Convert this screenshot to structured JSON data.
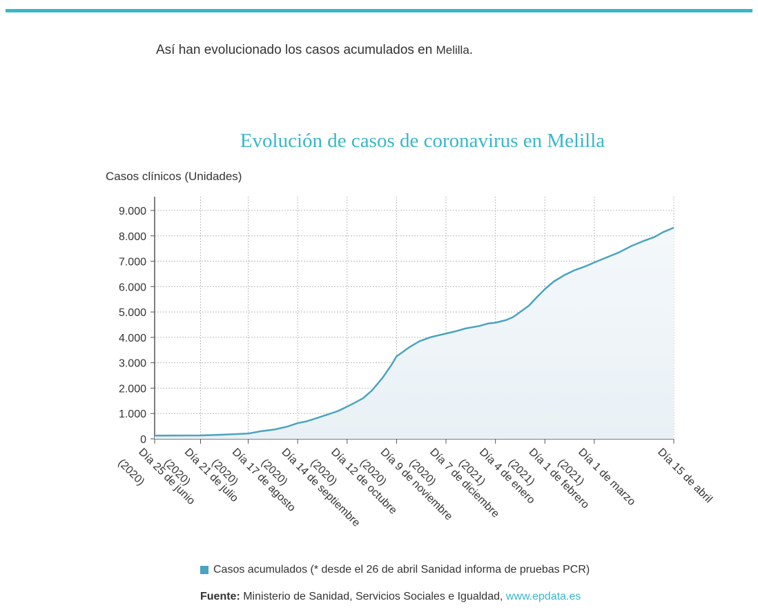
{
  "intro": {
    "text": "Así han evolucionado los casos acumulados en ",
    "place": "Melilla",
    "end": "."
  },
  "colors": {
    "accent": "#3ab6c8",
    "line": "#4aa3c0",
    "area": "#e9f1f6",
    "grid": "#bbbbbb"
  },
  "legend": {
    "label": "Casos acumulados (* desde el 26 de abril Sanidad informa de pruebas PCR)"
  },
  "source": {
    "label": "Fuente:",
    "text": " Ministerio de Sanidad, Servicios Sociales e Igualdad, ",
    "link": "www.epdata.es"
  },
  "chart_data": {
    "type": "area",
    "title": "Evolución de casos de coronavirus en Melilla",
    "ylabel": "Casos clínicos (Unidades)",
    "xlabel": "",
    "ylim": [
      0,
      9000
    ],
    "y_ticks": [
      "0",
      "1.000",
      "2.000",
      "3.000",
      "4.000",
      "5.000",
      "6.000",
      "7.000",
      "8.000",
      "9.000"
    ],
    "grid": true,
    "x_start": "2020-06-25",
    "x_end": "2021-04-15",
    "x_ticks": [
      {
        "date": "2020-06-25",
        "label": [
          "Día 25 de junio",
          "(2020)"
        ]
      },
      {
        "date": "2020-07-21",
        "label": [
          "Día 21 de julio",
          "(2020)"
        ]
      },
      {
        "date": "2020-08-17",
        "label": [
          "Día 17 de agosto",
          "(2020)"
        ]
      },
      {
        "date": "2020-09-14",
        "label": [
          "Día 14 de septiembre",
          "(2020)"
        ]
      },
      {
        "date": "2020-10-12",
        "label": [
          "Día 12 de octubre",
          "(2020)"
        ]
      },
      {
        "date": "2020-11-09",
        "label": [
          "Día 9 de noviembre",
          "(2020)"
        ]
      },
      {
        "date": "2020-12-07",
        "label": [
          "Día 7 de diciembre",
          "(2020)"
        ]
      },
      {
        "date": "2021-01-04",
        "label": [
          "Día 4 de enero",
          "(2021)"
        ]
      },
      {
        "date": "2021-02-01",
        "label": [
          "Día 1 de febrero",
          "(2021)"
        ]
      },
      {
        "date": "2021-03-01",
        "label": [
          "Día 1 de marzo",
          "(2021)"
        ]
      },
      {
        "date": "2021-04-15",
        "label": [
          "Día 15 de abril"
        ]
      }
    ],
    "series": [
      {
        "name": "Casos acumulados (* desde el 26 de abril Sanidad informa de pruebas PCR)",
        "points": [
          [
            "2020-06-25",
            130
          ],
          [
            "2020-07-21",
            135
          ],
          [
            "2020-08-03",
            165
          ],
          [
            "2020-08-17",
            210
          ],
          [
            "2020-08-24",
            300
          ],
          [
            "2020-09-01",
            370
          ],
          [
            "2020-09-08",
            480
          ],
          [
            "2020-09-14",
            620
          ],
          [
            "2020-09-19",
            690
          ],
          [
            "2020-09-24",
            800
          ],
          [
            "2020-10-01",
            960
          ],
          [
            "2020-10-07",
            1100
          ],
          [
            "2020-10-12",
            1270
          ],
          [
            "2020-10-17",
            1450
          ],
          [
            "2020-10-21",
            1600
          ],
          [
            "2020-10-26",
            1900
          ],
          [
            "2020-11-01",
            2400
          ],
          [
            "2020-11-06",
            2900
          ],
          [
            "2020-11-09",
            3250
          ],
          [
            "2020-11-12",
            3400
          ],
          [
            "2020-11-16",
            3600
          ],
          [
            "2020-11-22",
            3850
          ],
          [
            "2020-11-28",
            4000
          ],
          [
            "2020-12-01",
            4050
          ],
          [
            "2020-12-07",
            4150
          ],
          [
            "2020-12-12",
            4230
          ],
          [
            "2020-12-18",
            4350
          ],
          [
            "2020-12-26",
            4450
          ],
          [
            "2020-12-31",
            4550
          ],
          [
            "2021-01-04",
            4580
          ],
          [
            "2021-01-10",
            4680
          ],
          [
            "2021-01-14",
            4800
          ],
          [
            "2021-01-18",
            5000
          ],
          [
            "2021-01-23",
            5250
          ],
          [
            "2021-01-27",
            5550
          ],
          [
            "2021-02-01",
            5900
          ],
          [
            "2021-02-06",
            6200
          ],
          [
            "2021-02-12",
            6450
          ],
          [
            "2021-02-18",
            6650
          ],
          [
            "2021-02-24",
            6800
          ],
          [
            "2021-03-01",
            6950
          ],
          [
            "2021-03-08",
            7150
          ],
          [
            "2021-03-15",
            7350
          ],
          [
            "2021-03-22",
            7600
          ],
          [
            "2021-03-29",
            7800
          ],
          [
            "2021-04-04",
            7950
          ],
          [
            "2021-04-09",
            8150
          ],
          [
            "2021-04-15",
            8320
          ]
        ]
      }
    ]
  }
}
